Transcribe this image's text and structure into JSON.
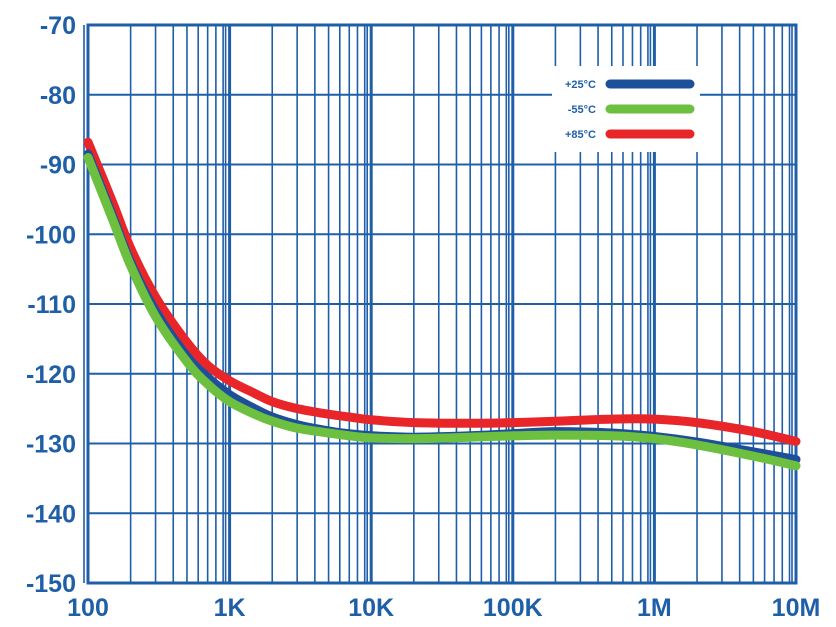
{
  "chart_data": {
    "type": "line",
    "title": "",
    "xlabel": "",
    "ylabel": "",
    "x_scale": "log",
    "xlim": [
      100,
      10000000
    ],
    "ylim": [
      -150,
      -70
    ],
    "grid": true,
    "legend_position": "top-right",
    "x_ticks": [
      {
        "value": 100,
        "label": "100"
      },
      {
        "value": 1000,
        "label": "1K"
      },
      {
        "value": 10000,
        "label": "10K"
      },
      {
        "value": 100000,
        "label": "100K"
      },
      {
        "value": 1000000,
        "label": "1M"
      },
      {
        "value": 10000000,
        "label": "10M"
      }
    ],
    "y_ticks": [
      {
        "value": -70,
        "label": "-70"
      },
      {
        "value": -80,
        "label": "-80"
      },
      {
        "value": -90,
        "label": "-90"
      },
      {
        "value": -100,
        "label": "-100"
      },
      {
        "value": -110,
        "label": "-110"
      },
      {
        "value": -120,
        "label": "-120"
      },
      {
        "value": -130,
        "label": "-130"
      },
      {
        "value": -140,
        "label": "-140"
      },
      {
        "value": -150,
        "label": "-150"
      }
    ],
    "colors": {
      "axis": "#1f5fa8",
      "grid": "#1f5fa8"
    },
    "series": [
      {
        "name": "+25°C",
        "color": "#1d4f9a",
        "points": [
          [
            100,
            -88.5
          ],
          [
            150,
            -97.5
          ],
          [
            200,
            -104
          ],
          [
            300,
            -111
          ],
          [
            500,
            -117.5
          ],
          [
            700,
            -120.5
          ],
          [
            1000,
            -123
          ],
          [
            1500,
            -125
          ],
          [
            2000,
            -126.2
          ],
          [
            3000,
            -127.3
          ],
          [
            5000,
            -128.2
          ],
          [
            7000,
            -128.6
          ],
          [
            10000,
            -128.9
          ],
          [
            20000,
            -129.1
          ],
          [
            50000,
            -128.9
          ],
          [
            100000,
            -128.6
          ],
          [
            200000,
            -128.3
          ],
          [
            500000,
            -128.5
          ],
          [
            1000000,
            -129
          ],
          [
            2000000,
            -129.8
          ],
          [
            5000000,
            -131.2
          ],
          [
            10000000,
            -132.3
          ]
        ]
      },
      {
        "name": "-55°C",
        "color": "#6cbf3f",
        "points": [
          [
            100,
            -89
          ],
          [
            150,
            -98
          ],
          [
            200,
            -104.5
          ],
          [
            300,
            -111.8
          ],
          [
            500,
            -118.3
          ],
          [
            700,
            -121.5
          ],
          [
            1000,
            -124
          ],
          [
            1500,
            -125.8
          ],
          [
            2000,
            -126.8
          ],
          [
            3000,
            -127.8
          ],
          [
            5000,
            -128.5
          ],
          [
            7000,
            -128.9
          ],
          [
            10000,
            -129.2
          ],
          [
            20000,
            -129.3
          ],
          [
            50000,
            -129.1
          ],
          [
            100000,
            -128.9
          ],
          [
            200000,
            -128.8
          ],
          [
            500000,
            -128.9
          ],
          [
            1000000,
            -129.3
          ],
          [
            2000000,
            -130.2
          ],
          [
            5000000,
            -131.8
          ],
          [
            10000000,
            -133.2
          ]
        ]
      },
      {
        "name": "+85°C",
        "color": "#e8262a",
        "points": [
          [
            100,
            -86.8
          ],
          [
            150,
            -95.5
          ],
          [
            200,
            -102
          ],
          [
            300,
            -109
          ],
          [
            500,
            -115.5
          ],
          [
            700,
            -118.8
          ],
          [
            1000,
            -121
          ],
          [
            1500,
            -122.8
          ],
          [
            2000,
            -124
          ],
          [
            3000,
            -125
          ],
          [
            5000,
            -125.8
          ],
          [
            7000,
            -126.2
          ],
          [
            10000,
            -126.6
          ],
          [
            20000,
            -127
          ],
          [
            50000,
            -127.1
          ],
          [
            100000,
            -127
          ],
          [
            200000,
            -126.8
          ],
          [
            500000,
            -126.5
          ],
          [
            1000000,
            -126.5
          ],
          [
            2000000,
            -127
          ],
          [
            5000000,
            -128.3
          ],
          [
            10000000,
            -129.7
          ]
        ]
      }
    ]
  }
}
